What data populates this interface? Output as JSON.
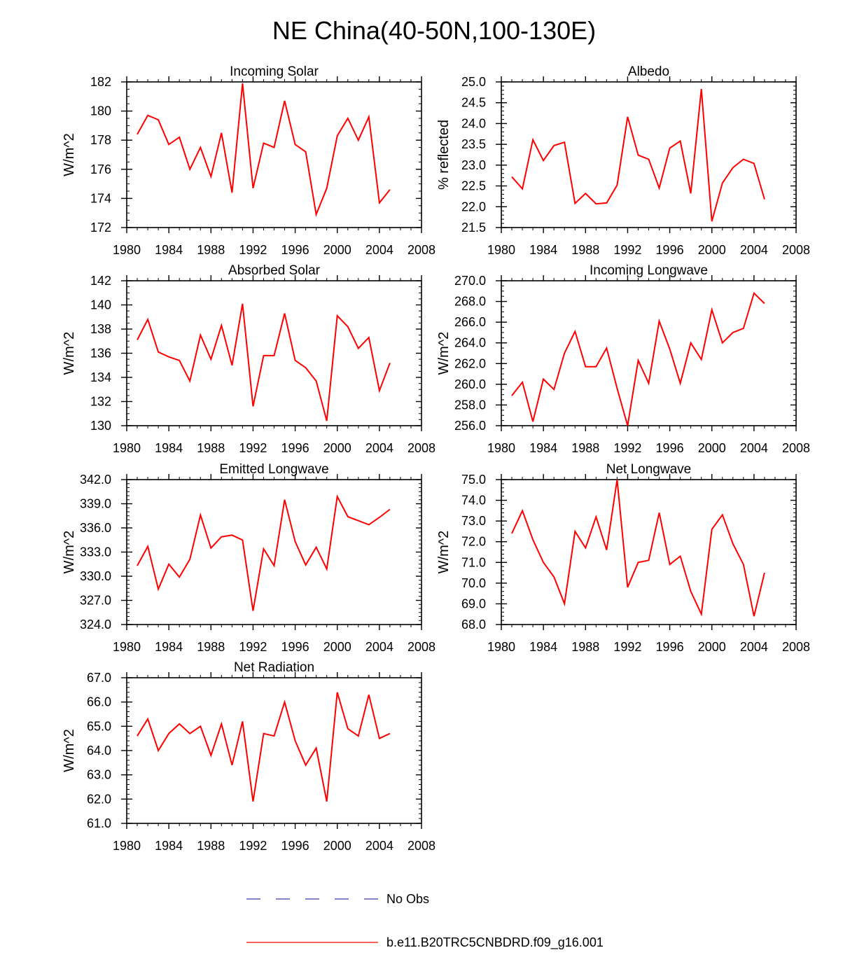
{
  "figure": {
    "title": "NE China(40-50N,100-130E)",
    "legend": [
      {
        "label": "No Obs",
        "style": "dashed",
        "color": "#3a3ab0"
      },
      {
        "label": "b.e11.B20TRC5CNBDRD.f09_g16.001",
        "style": "solid",
        "color": "#ff0000"
      }
    ]
  },
  "chart_data": [
    {
      "type": "line",
      "title": "Incoming Solar",
      "xlabel": "",
      "ylabel": "W/m^2",
      "xlim": [
        1980,
        2008
      ],
      "ylim": [
        172,
        182
      ],
      "xticks": [
        1980,
        1984,
        1988,
        1992,
        1996,
        2000,
        2004,
        2008
      ],
      "yticks": [
        172,
        174,
        176,
        178,
        180,
        182
      ],
      "yminor": 0.5,
      "ytick_decimals": 0,
      "series": [
        {
          "name": "b.e11.B20TRC5CNBDRD.f09_g16.001",
          "color": "#ff0000",
          "x": [
            1981,
            1982,
            1983,
            1984,
            1985,
            1986,
            1987,
            1988,
            1989,
            1990,
            1991,
            1992,
            1993,
            1994,
            1995,
            1996,
            1997,
            1998,
            1999,
            2000,
            2001,
            2002,
            2003,
            2004,
            2005
          ],
          "values": [
            178.4,
            179.7,
            179.4,
            177.7,
            178.2,
            176.0,
            177.5,
            175.5,
            178.5,
            174.4,
            181.9,
            174.7,
            177.8,
            177.5,
            180.7,
            177.7,
            177.2,
            172.9,
            174.7,
            178.3,
            179.5,
            178.0,
            179.6,
            173.7,
            174.6
          ]
        }
      ]
    },
    {
      "type": "line",
      "title": "Albedo",
      "xlabel": "",
      "ylabel": "% reflected",
      "xlim": [
        1980,
        2008
      ],
      "ylim": [
        21.5,
        25.0
      ],
      "xticks": [
        1980,
        1984,
        1988,
        1992,
        1996,
        2000,
        2004,
        2008
      ],
      "yticks": [
        21.5,
        22.0,
        22.5,
        23.0,
        23.5,
        24.0,
        24.5,
        25.0
      ],
      "yminor": 0.1,
      "ytick_decimals": 1,
      "series": [
        {
          "name": "b.e11.B20TRC5CNBDRD.f09_g16.001",
          "color": "#ff0000",
          "x": [
            1981,
            1982,
            1983,
            1984,
            1985,
            1986,
            1987,
            1988,
            1989,
            1990,
            1991,
            1992,
            1993,
            1994,
            1995,
            1996,
            1997,
            1998,
            1999,
            2000,
            2001,
            2002,
            2003,
            2004,
            2005
          ],
          "values": [
            22.72,
            22.43,
            23.61,
            23.11,
            23.47,
            23.55,
            22.08,
            22.32,
            22.07,
            22.09,
            22.52,
            24.16,
            23.24,
            23.14,
            22.45,
            23.41,
            23.58,
            22.32,
            24.83,
            21.65,
            22.57,
            22.94,
            23.14,
            23.04,
            22.18
          ]
        }
      ]
    },
    {
      "type": "line",
      "title": "Absorbed Solar",
      "xlabel": "",
      "ylabel": "W/m^2",
      "xlim": [
        1980,
        2008
      ],
      "ylim": [
        130,
        142
      ],
      "xticks": [
        1980,
        1984,
        1988,
        1992,
        1996,
        2000,
        2004,
        2008
      ],
      "yticks": [
        130,
        132,
        134,
        136,
        138,
        140,
        142
      ],
      "yminor": 0.5,
      "ytick_decimals": 0,
      "series": [
        {
          "name": "b.e11.B20TRC5CNBDRD.f09_g16.001",
          "color": "#ff0000",
          "x": [
            1981,
            1982,
            1983,
            1984,
            1985,
            1986,
            1987,
            1988,
            1989,
            1990,
            1991,
            1992,
            1993,
            1994,
            1995,
            1996,
            1997,
            1998,
            1999,
            2000,
            2001,
            2002,
            2003,
            2004,
            2005
          ],
          "values": [
            137.1,
            138.8,
            136.1,
            135.7,
            135.4,
            133.7,
            137.5,
            135.5,
            138.3,
            135.0,
            140.1,
            131.6,
            135.8,
            135.8,
            139.3,
            135.4,
            134.8,
            133.7,
            130.4,
            139.1,
            138.2,
            136.4,
            137.3,
            132.9,
            135.2
          ]
        }
      ]
    },
    {
      "type": "line",
      "title": "Incoming Longwave",
      "xlabel": "",
      "ylabel": "W/m^2",
      "xlim": [
        1980,
        2008
      ],
      "ylim": [
        256.0,
        270.0
      ],
      "xticks": [
        1980,
        1984,
        1988,
        1992,
        1996,
        2000,
        2004,
        2008
      ],
      "yticks": [
        256.0,
        258.0,
        260.0,
        262.0,
        264.0,
        266.0,
        268.0,
        270.0
      ],
      "yminor": 0.5,
      "ytick_decimals": 1,
      "series": [
        {
          "name": "b.e11.B20TRC5CNBDRD.f09_g16.001",
          "color": "#ff0000",
          "x": [
            1981,
            1982,
            1983,
            1984,
            1985,
            1986,
            1987,
            1988,
            1989,
            1990,
            1991,
            1992,
            1993,
            1994,
            1995,
            1996,
            1997,
            1998,
            1999,
            2000,
            2001,
            2002,
            2003,
            2004,
            2005
          ],
          "values": [
            258.9,
            260.2,
            256.4,
            260.5,
            259.5,
            263.0,
            265.1,
            261.7,
            261.7,
            263.5,
            259.6,
            256.0,
            262.3,
            260.1,
            266.1,
            263.4,
            260.1,
            264.0,
            262.4,
            267.2,
            264.0,
            265.0,
            265.4,
            268.8,
            267.8
          ]
        }
      ]
    },
    {
      "type": "line",
      "title": "Emitted Longwave",
      "xlabel": "",
      "ylabel": "W/m^2",
      "xlim": [
        1980,
        2008
      ],
      "ylim": [
        324.0,
        342.0
      ],
      "xticks": [
        1980,
        1984,
        1988,
        1992,
        1996,
        2000,
        2004,
        2008
      ],
      "yticks": [
        324.0,
        327.0,
        330.0,
        333.0,
        336.0,
        339.0,
        342.0
      ],
      "yminor": 0.5,
      "ytick_decimals": 1,
      "series": [
        {
          "name": "b.e11.B20TRC5CNBDRD.f09_g16.001",
          "color": "#ff0000",
          "x": [
            1981,
            1982,
            1983,
            1984,
            1985,
            1986,
            1987,
            1988,
            1989,
            1990,
            1991,
            1992,
            1993,
            1994,
            1995,
            1996,
            1997,
            1998,
            1999,
            2000,
            2001,
            2002,
            2003,
            2004,
            2005
          ],
          "values": [
            331.3,
            333.7,
            328.4,
            331.5,
            329.9,
            332.1,
            337.6,
            333.5,
            334.9,
            335.1,
            334.5,
            325.7,
            333.4,
            331.3,
            339.5,
            334.3,
            331.4,
            333.6,
            330.9,
            339.9,
            337.4,
            336.9,
            336.4,
            337.3,
            338.3
          ]
        }
      ]
    },
    {
      "type": "line",
      "title": "Net Longwave",
      "xlabel": "",
      "ylabel": "W/m^2",
      "xlim": [
        1980,
        2008
      ],
      "ylim": [
        68.0,
        75.0
      ],
      "xticks": [
        1980,
        1984,
        1988,
        1992,
        1996,
        2000,
        2004,
        2008
      ],
      "yticks": [
        68.0,
        69.0,
        70.0,
        71.0,
        72.0,
        73.0,
        74.0,
        75.0
      ],
      "yminor": 0.2,
      "ytick_decimals": 1,
      "series": [
        {
          "name": "b.e11.B20TRC5CNBDRD.f09_g16.001",
          "color": "#ff0000",
          "x": [
            1981,
            1982,
            1983,
            1984,
            1985,
            1986,
            1987,
            1988,
            1989,
            1990,
            1991,
            1992,
            1993,
            1994,
            1995,
            1996,
            1997,
            1998,
            1999,
            2000,
            2001,
            2002,
            2003,
            2004,
            2005
          ],
          "values": [
            72.4,
            73.5,
            72.1,
            71.0,
            70.3,
            69.0,
            72.5,
            71.7,
            73.2,
            71.6,
            75.0,
            69.8,
            71.0,
            71.1,
            73.4,
            70.9,
            71.3,
            69.6,
            68.5,
            72.6,
            73.3,
            71.9,
            70.9,
            68.4,
            70.5
          ]
        }
      ]
    },
    {
      "type": "line",
      "title": "Net Radiation",
      "xlabel": "",
      "ylabel": "W/m^2",
      "xlim": [
        1980,
        2008
      ],
      "ylim": [
        61.0,
        67.0
      ],
      "xticks": [
        1980,
        1984,
        1988,
        1992,
        1996,
        2000,
        2004,
        2008
      ],
      "yticks": [
        61.0,
        62.0,
        63.0,
        64.0,
        65.0,
        66.0,
        67.0
      ],
      "yminor": 0.2,
      "ytick_decimals": 1,
      "series": [
        {
          "name": "b.e11.B20TRC5CNBDRD.f09_g16.001",
          "color": "#ff0000",
          "x": [
            1981,
            1982,
            1983,
            1984,
            1985,
            1986,
            1987,
            1988,
            1989,
            1990,
            1991,
            1992,
            1993,
            1994,
            1995,
            1996,
            1997,
            1998,
            1999,
            2000,
            2001,
            2002,
            2003,
            2004,
            2005
          ],
          "values": [
            64.6,
            65.3,
            64.0,
            64.7,
            65.1,
            64.7,
            65.0,
            63.8,
            65.1,
            63.4,
            65.2,
            61.9,
            64.7,
            64.6,
            66.0,
            64.4,
            63.4,
            64.1,
            61.9,
            66.4,
            64.9,
            64.6,
            66.3,
            64.5,
            64.7
          ]
        }
      ]
    }
  ]
}
